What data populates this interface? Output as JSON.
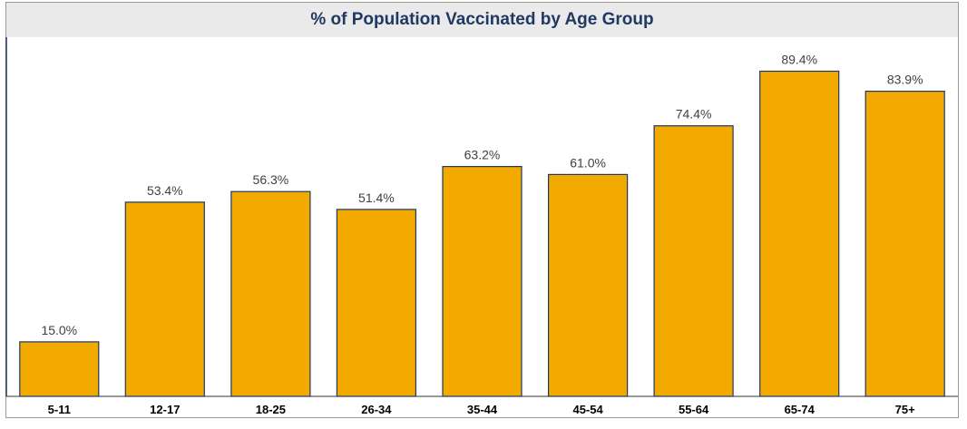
{
  "chart_data": {
    "type": "bar",
    "title": "% of Population Vaccinated by Age Group",
    "xlabel": "",
    "ylabel": "",
    "categories": [
      "5-11",
      "12-17",
      "18-25",
      "26-34",
      "35-44",
      "45-54",
      "55-64",
      "65-74",
      "75+"
    ],
    "values": [
      15.0,
      53.4,
      56.3,
      51.4,
      63.2,
      61.0,
      74.4,
      89.4,
      83.9
    ],
    "value_labels": [
      "15.0%",
      "53.4%",
      "56.3%",
      "51.4%",
      "63.2%",
      "61.0%",
      "74.4%",
      "89.4%",
      "83.9%"
    ],
    "ylim": [
      0,
      100
    ],
    "grid": false,
    "legend": "none",
    "bar_color": "#f2a900",
    "bar_edge_color": "#1f3864",
    "title_color": "#1f3864"
  }
}
